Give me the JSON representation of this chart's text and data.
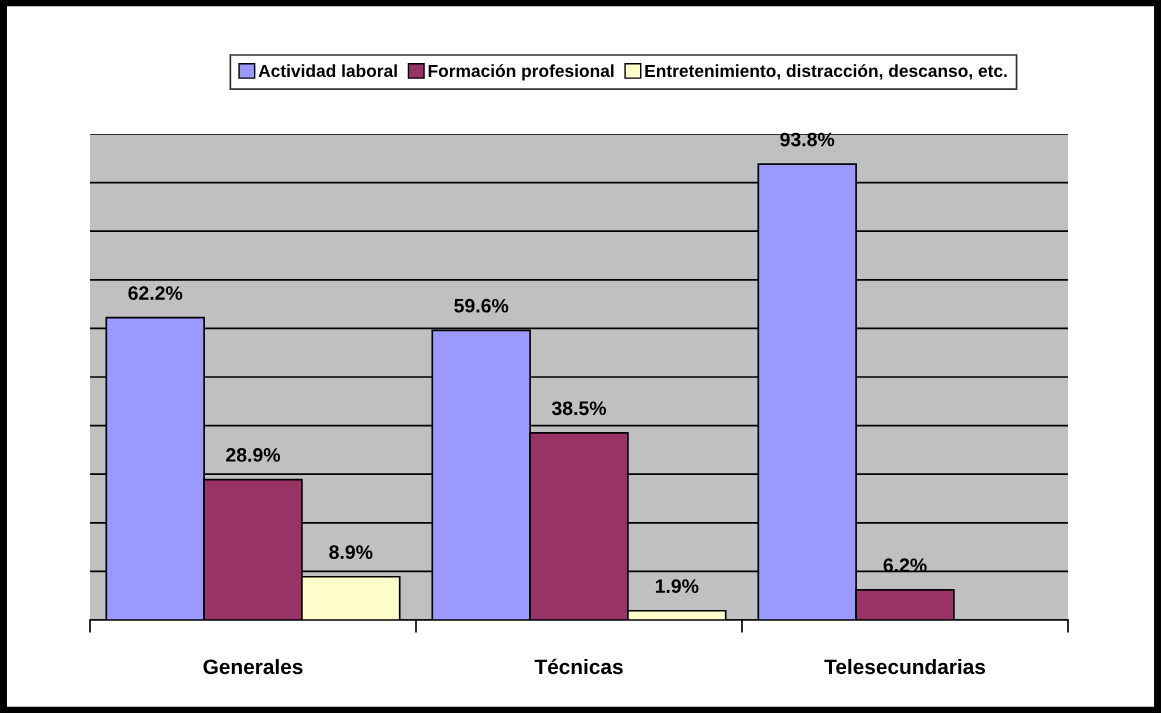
{
  "chart_data": {
    "type": "bar",
    "categories": [
      "Generales",
      "Técnicas",
      "Telesecundarias"
    ],
    "series": [
      {
        "name": "Actividad laboral",
        "color": "#9999ff",
        "values": [
          62.2,
          59.6,
          93.8
        ],
        "value_labels": [
          "62.2%",
          "59.6%",
          "93.8%"
        ]
      },
      {
        "name": "Formación profesional",
        "color": "#993366",
        "values": [
          28.9,
          38.5,
          6.2
        ],
        "value_labels": [
          "28.9%",
          "38.5%",
          "6.2%"
        ]
      },
      {
        "name": "Entretenimiento, distracción, descanso, etc.",
        "color": "#ffffcc",
        "values": [
          8.9,
          1.9,
          null
        ],
        "value_labels": [
          "8.9%",
          "1.9%",
          null
        ]
      }
    ],
    "ylim": [
      0,
      100
    ],
    "yticks": [
      {
        "value": 0,
        "label": null
      },
      {
        "value": 10,
        "label": null
      },
      {
        "value": 20,
        "label": null
      },
      {
        "value": 30,
        "label": null
      },
      {
        "value": 40,
        "label": null
      },
      {
        "value": 50,
        "label": null
      },
      {
        "value": 60,
        "label": null
      },
      {
        "value": 70,
        "label": null
      },
      {
        "value": 80,
        "label": null
      },
      {
        "value": 90,
        "label": null
      },
      {
        "value": 100,
        "label": null
      }
    ],
    "grid": "y",
    "legend": "top",
    "tick_labels": "x"
  }
}
